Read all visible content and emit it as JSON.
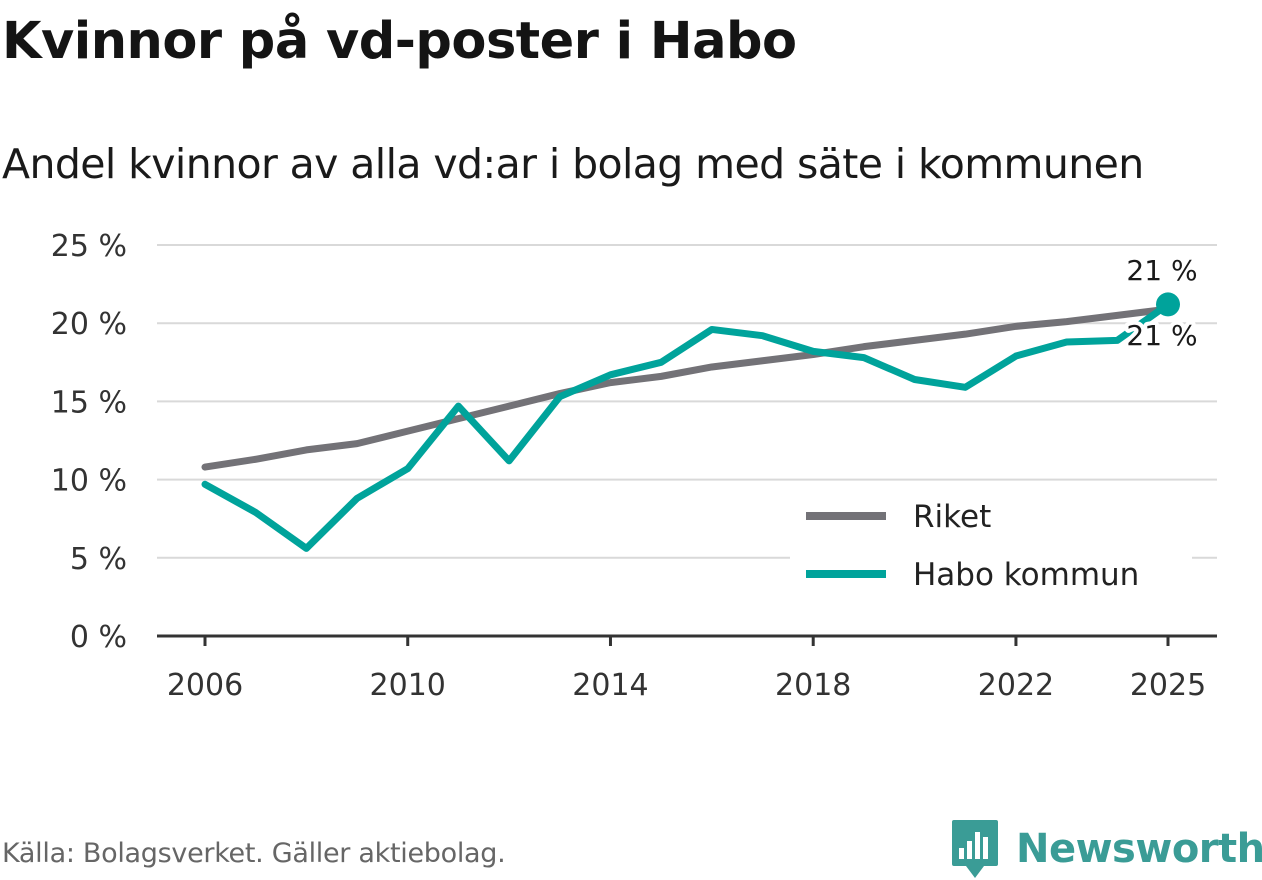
{
  "header": {
    "title": "Kvinnor på vd-poster i Habo",
    "subtitle": "Andel kvinnor av alla vd:ar i bolag med säte i kommunen"
  },
  "footer": {
    "source": "Källa: Bolagsverket. Gäller aktiebolag.",
    "brand": "Newsworthy"
  },
  "chart_data": {
    "type": "line",
    "x": [
      2006,
      2007,
      2008,
      2009,
      2010,
      2011,
      2012,
      2013,
      2014,
      2015,
      2016,
      2017,
      2018,
      2019,
      2020,
      2021,
      2022,
      2023,
      2024,
      2025
    ],
    "series": [
      {
        "name": "Riket",
        "color": "#737277",
        "values": [
          10.8,
          11.3,
          11.9,
          12.3,
          13.1,
          13.9,
          14.7,
          15.5,
          16.2,
          16.6,
          17.2,
          17.6,
          18.0,
          18.5,
          18.9,
          19.3,
          19.8,
          20.1,
          20.5,
          20.9
        ]
      },
      {
        "name": "Habo kommun",
        "color": "#00a39b",
        "values": [
          9.7,
          7.9,
          5.6,
          8.8,
          10.7,
          14.7,
          11.2,
          15.3,
          16.7,
          17.5,
          19.6,
          19.2,
          18.2,
          17.8,
          16.4,
          15.9,
          17.9,
          18.8,
          18.9,
          21.2
        ]
      }
    ],
    "ylim": [
      0,
      25
    ],
    "yticks": [
      0,
      5,
      10,
      15,
      20,
      25
    ],
    "ytick_labels": [
      "0 %",
      "5 %",
      "10 %",
      "15 %",
      "20 %",
      "25 %"
    ],
    "xticks": [
      2006,
      2010,
      2014,
      2018,
      2022,
      2025
    ],
    "xtick_labels": [
      "2006",
      "2010",
      "2014",
      "2018",
      "2022",
      "2025"
    ],
    "end_labels": {
      "Habo kommun": "21 %",
      "Riket": "21 %"
    },
    "grid": true,
    "legend_position": "bottom-right"
  }
}
